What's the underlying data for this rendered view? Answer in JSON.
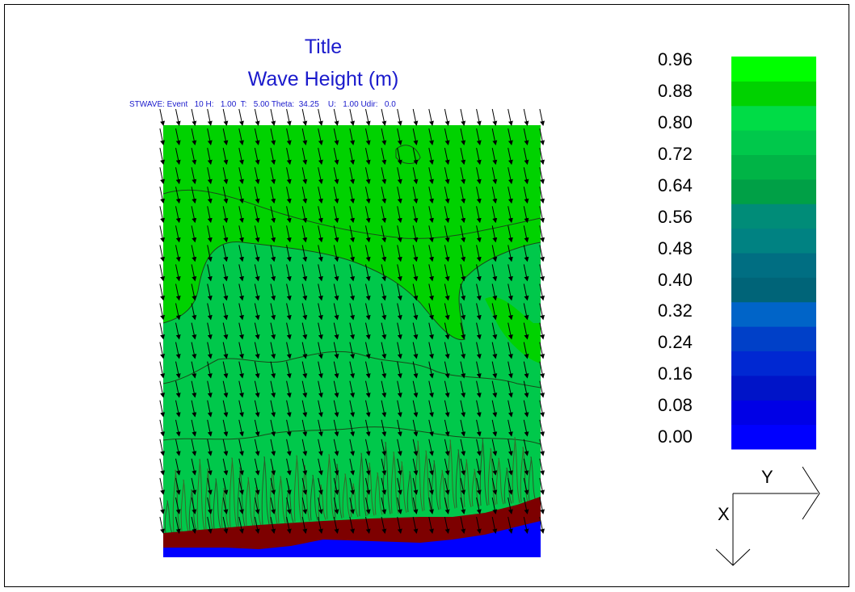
{
  "header": {
    "title": "Title",
    "subtitle": "Wave Height (m)",
    "info": "STWAVE: Event   10 H:   1.00  T:   5.00 Theta:  34.25    U:   1.00 Udir:   0.0"
  },
  "chart_data": {
    "type": "heatmap",
    "title": "Title",
    "subtitle": "Wave Height (m)",
    "xlabel": "",
    "ylabel": "",
    "colorbar": {
      "min": 0.0,
      "max": 1.0,
      "step": 0.04,
      "tick_labels": [
        "0.96",
        "0.88",
        "0.80",
        "0.72",
        "0.64",
        "0.56",
        "0.48",
        "0.40",
        "0.32",
        "0.24",
        "0.16",
        "0.08",
        "0.00"
      ],
      "tick_values": [
        0.96,
        0.88,
        0.8,
        0.72,
        0.64,
        0.56,
        0.48,
        0.4,
        0.32,
        0.24,
        0.16,
        0.08,
        0.0
      ],
      "colors_bottom_to_top": [
        "#0000ff",
        "#0000e6",
        "#0014c8",
        "#0028d2",
        "#0040c8",
        "#0064c8",
        "#006478",
        "#006e82",
        "#008282",
        "#008c78",
        "#00a046",
        "#00b446",
        "#00c84b",
        "#00dc46",
        "#00d200",
        "#00ff00"
      ]
    },
    "field_colors": {
      "offshore": "#00d200",
      "nearshore": "#00c84b",
      "breaker": "#7d0000",
      "land": "#0000ff"
    },
    "vectors": {
      "label": "wave direction",
      "theta_deg": 34.25,
      "rows": 22,
      "cols": 25
    },
    "axes_indicator": {
      "x_label": "X",
      "y_label": "Y"
    },
    "legend_position": "right",
    "grid": false
  }
}
